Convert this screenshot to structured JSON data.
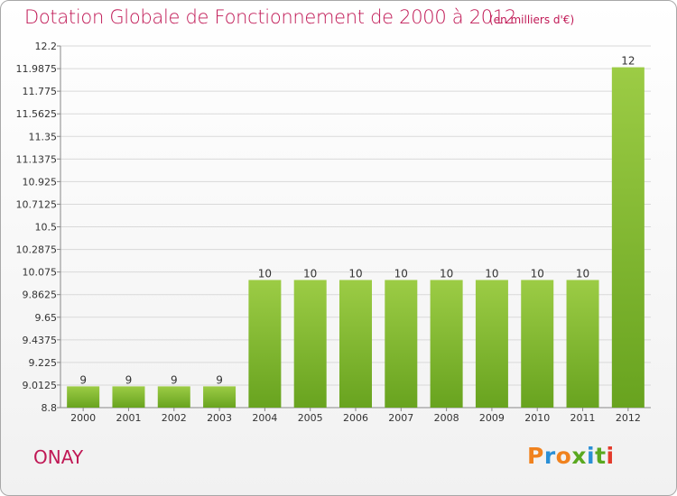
{
  "header": {
    "title": "Dotation Globale de Fonctionnement de 2000 à 2012",
    "unit": "(en milliers d'€)"
  },
  "footer": {
    "commune": "ONAY",
    "brand": "Proxiti"
  },
  "colors": {
    "title": "#c01855",
    "bar_top": "#9ccc45",
    "bar_bottom": "#68a31f",
    "brand_letters": [
      "#f0821e",
      "#2a8fd6",
      "#f0821e",
      "#5aa820",
      "#2a8fd6",
      "#5aa820",
      "#e33a2b"
    ]
  },
  "chart_data": {
    "type": "bar",
    "categories": [
      "2000",
      "2001",
      "2002",
      "2003",
      "2004",
      "2005",
      "2006",
      "2007",
      "2008",
      "2009",
      "2010",
      "2011",
      "2012"
    ],
    "values": [
      9,
      9,
      9,
      9,
      10,
      10,
      10,
      10,
      10,
      10,
      10,
      10,
      12
    ],
    "data_labels": [
      "9",
      "9",
      "9",
      "9",
      "10",
      "10",
      "10",
      "10",
      "10",
      "10",
      "10",
      "10",
      "12"
    ],
    "yticks": [
      8.8,
      9.0125,
      9.225,
      9.4375,
      9.65,
      9.8625,
      10.075,
      10.2875,
      10.5,
      10.7125,
      10.925,
      11.1375,
      11.35,
      11.5625,
      11.775,
      11.9875,
      12.2
    ],
    "ytick_labels": [
      "8.8",
      "9.0125",
      "9.225",
      "9.4375",
      "9.65",
      "9.8625",
      "10.075",
      "10.2875",
      "10.5",
      "10.7125",
      "10.925",
      "11.1375",
      "11.35",
      "11.5625",
      "11.775",
      "11.9875",
      "12.2"
    ],
    "ylim": [
      8.8,
      12.2
    ],
    "grid": true,
    "legend": "none"
  }
}
